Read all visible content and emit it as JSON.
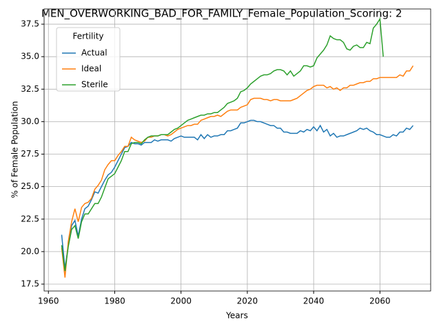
{
  "chart_data": {
    "type": "line",
    "title": "MEN_OVERWORKING_BAD_FOR_FAMILY_Female_Population_Scoring: 2",
    "xlabel": "Years",
    "ylabel": "% of Female Population",
    "x": [
      1964,
      1965,
      1966,
      1967,
      1968,
      1969,
      1970,
      1971,
      1972,
      1973,
      1974,
      1975,
      1976,
      1977,
      1978,
      1979,
      1980,
      1981,
      1982,
      1983,
      1984,
      1985,
      1986,
      1987,
      1988,
      1989,
      1990,
      1991,
      1992,
      1993,
      1994,
      1995,
      1996,
      1997,
      1998,
      1999,
      2000,
      2001,
      2002,
      2003,
      2004,
      2005,
      2006,
      2007,
      2008,
      2009,
      2010,
      2011,
      2012,
      2013,
      2014,
      2015,
      2016,
      2017,
      2018,
      2019,
      2020,
      2021,
      2022,
      2023,
      2024,
      2025,
      2026,
      2027,
      2028,
      2029,
      2030,
      2031,
      2032,
      2033,
      2034,
      2035,
      2036,
      2037,
      2038,
      2039,
      2040,
      2041,
      2042,
      2043,
      2044,
      2045,
      2046,
      2047,
      2048,
      2049,
      2050,
      2051,
      2052,
      2053,
      2054,
      2055,
      2056,
      2057,
      2058,
      2059,
      2060,
      2061,
      2062,
      2063,
      2064,
      2065,
      2066,
      2067,
      2068,
      2069,
      2070
    ],
    "series": [
      {
        "name": "Actual",
        "color": "#1f77b4",
        "values": [
          21.3,
          18.7,
          20.5,
          22.0,
          22.4,
          21.2,
          22.5,
          23.3,
          23.5,
          24.0,
          24.6,
          24.5,
          25.0,
          25.5,
          25.9,
          26.1,
          26.5,
          27.0,
          27.5,
          28.0,
          28.1,
          28.4,
          28.3,
          28.3,
          28.2,
          28.4,
          28.4,
          28.4,
          28.6,
          28.5,
          28.6,
          28.6,
          28.6,
          28.5,
          28.7,
          28.8,
          28.9,
          28.8,
          28.8,
          28.8,
          28.8,
          28.6,
          29.0,
          28.7,
          29.0,
          28.8,
          28.9,
          28.9,
          29.0,
          29.0,
          29.3,
          29.3,
          29.4,
          29.5,
          29.9,
          29.9,
          30.0,
          30.1,
          30.1,
          30.0,
          30.0,
          29.9,
          29.8,
          29.7,
          29.7,
          29.5,
          29.5,
          29.2,
          29.2,
          29.1,
          29.1,
          29.1,
          29.3,
          29.2,
          29.4,
          29.3,
          29.6,
          29.3,
          29.7,
          29.2,
          29.4,
          28.9,
          29.1,
          28.8,
          28.9,
          28.9,
          29.0,
          29.1,
          29.2,
          29.3,
          29.5,
          29.4,
          29.5,
          29.3,
          29.2,
          29.0,
          29.0,
          28.9,
          28.8,
          28.8,
          29.0,
          28.9,
          29.2,
          29.2,
          29.5,
          29.4,
          29.7
        ]
      },
      {
        "name": "Ideal",
        "color": "#ff7f0e",
        "values": [
          20.3,
          18.0,
          20.8,
          22.3,
          23.3,
          22.3,
          23.4,
          23.7,
          23.8,
          24.1,
          24.8,
          25.1,
          25.5,
          26.3,
          26.7,
          27.0,
          27.0,
          27.4,
          27.7,
          28.1,
          28.1,
          28.8,
          28.6,
          28.5,
          28.4,
          28.5,
          28.8,
          28.8,
          28.9,
          28.9,
          29.0,
          29.0,
          28.9,
          29.0,
          29.2,
          29.4,
          29.5,
          29.6,
          29.7,
          29.7,
          29.8,
          29.8,
          30.1,
          30.2,
          30.3,
          30.4,
          30.4,
          30.5,
          30.4,
          30.6,
          30.8,
          30.9,
          30.9,
          30.9,
          31.1,
          31.2,
          31.3,
          31.7,
          31.8,
          31.8,
          31.8,
          31.7,
          31.7,
          31.6,
          31.7,
          31.7,
          31.6,
          31.6,
          31.6,
          31.6,
          31.7,
          31.8,
          32.0,
          32.2,
          32.4,
          32.5,
          32.7,
          32.8,
          32.8,
          32.8,
          32.6,
          32.7,
          32.5,
          32.6,
          32.4,
          32.6,
          32.6,
          32.8,
          32.8,
          32.9,
          33.0,
          33.0,
          33.1,
          33.1,
          33.3,
          33.3,
          33.4,
          33.4,
          33.4,
          33.4,
          33.4,
          33.4,
          33.6,
          33.5,
          33.9,
          33.9,
          34.3
        ]
      },
      {
        "name": "Sterile",
        "color": "#2ca02c",
        "values": [
          20.5,
          18.5,
          20.4,
          21.7,
          22.0,
          21.0,
          22.3,
          22.9,
          22.9,
          23.3,
          23.7,
          23.7,
          24.2,
          24.9,
          25.6,
          25.8,
          26.0,
          26.5,
          27.0,
          27.7,
          27.7,
          28.3,
          28.4,
          28.4,
          28.3,
          28.6,
          28.8,
          28.9,
          28.9,
          28.9,
          29.0,
          29.0,
          29.0,
          29.2,
          29.4,
          29.5,
          29.7,
          29.9,
          30.1,
          30.2,
          30.3,
          30.4,
          30.5,
          30.5,
          30.6,
          30.6,
          30.7,
          30.7,
          30.9,
          31.1,
          31.4,
          31.5,
          31.6,
          31.8,
          32.3,
          32.4,
          32.6,
          32.9,
          33.1,
          33.3,
          33.5,
          33.6,
          33.6,
          33.7,
          33.9,
          34.0,
          34.0,
          33.9,
          33.6,
          33.9,
          33.5,
          33.7,
          33.9,
          34.3,
          34.3,
          34.2,
          34.3,
          34.9,
          35.2,
          35.5,
          35.9,
          36.6,
          36.4,
          36.3,
          36.3,
          36.1,
          35.6,
          35.5,
          35.8,
          35.9,
          35.7,
          35.7,
          36.1,
          36.0,
          37.2,
          37.5,
          37.9,
          35.0,
          null,
          null,
          null,
          null,
          null,
          null,
          null,
          null,
          null
        ]
      }
    ],
    "xlim": [
      1958.7,
      2075.3
    ],
    "ylim": [
      16.97,
      38.67
    ],
    "xticks": [
      1960,
      1980,
      2000,
      2020,
      2040,
      2060
    ],
    "yticks": [
      17.5,
      {
        "value": 20,
        "label": "20.0"
      },
      22.5,
      {
        "value": 25,
        "label": "25.0"
      },
      27.5,
      {
        "value": 30,
        "label": "30.0"
      },
      32.5,
      {
        "value": 35,
        "label": "35.0"
      },
      37.5
    ],
    "grid": true,
    "legend_title": "Fertility",
    "legend_position": "upper left"
  }
}
